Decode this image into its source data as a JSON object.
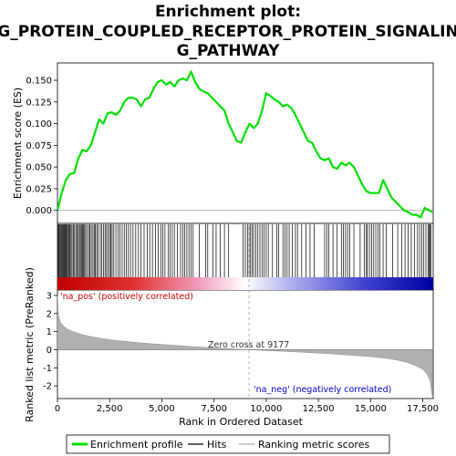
{
  "title_lines": [
    "Enrichment plot:",
    "G_PROTEIN_COUPLED_RECEPTOR_PROTEIN_SIGNALIN",
    "G_PATHWAY"
  ],
  "colors": {
    "enrichment_line": "#00e000",
    "hits": "#000000",
    "metric_fill": "#b0b0b0",
    "pos_label": "#cc0000",
    "neg_label": "#0000cc",
    "zero_cross_line": "#9999aa",
    "bar_red": "#d00000",
    "bar_white": "#ffffff",
    "bar_blue": "#0000cc"
  },
  "legend": {
    "enrichment_profile": "Enrichment profile",
    "hits": "Hits",
    "ranking_metric_scores": "Ranking metric scores"
  },
  "chart_data": [
    {
      "type": "line",
      "panel": "enrichment",
      "ylabel": "Enrichment score (ES)",
      "xlim": [
        0,
        18000
      ],
      "ylim": [
        -0.015,
        0.17
      ],
      "yticks": [
        0.0,
        0.025,
        0.05,
        0.075,
        0.1,
        0.125,
        0.15
      ],
      "ytick_labels": [
        "0.000",
        "0.025",
        "0.050",
        "0.075",
        "0.100",
        "0.125",
        "0.150"
      ],
      "series": [
        {
          "x": [
            0,
            200,
            400,
            600,
            800,
            1000,
            1200,
            1400,
            1600,
            1800,
            2000,
            2200,
            2400,
            2600,
            2800,
            3000,
            3200,
            3400,
            3600,
            3800,
            4000,
            4200,
            4400,
            4600,
            4800,
            5000,
            5200,
            5400,
            5600,
            5800,
            6000,
            6200,
            6400,
            6600,
            6800,
            7000,
            7200,
            7400,
            7600,
            7800,
            8000,
            8200,
            8400,
            8600,
            8800,
            9000,
            9200,
            9400,
            9600,
            9800,
            10000,
            10200,
            10400,
            10600,
            10800,
            11000,
            11200,
            11400,
            11600,
            11800,
            12000,
            12200,
            12400,
            12600,
            12800,
            13000,
            13200,
            13400,
            13600,
            13800,
            14000,
            14200,
            14400,
            14600,
            14800,
            15000,
            15200,
            15400,
            15600,
            15800,
            16000,
            16200,
            16400,
            16600,
            16800,
            17000,
            17200,
            17400,
            17600,
            17800,
            17950
          ],
          "y": [
            0.0,
            0.02,
            0.035,
            0.042,
            0.043,
            0.06,
            0.07,
            0.068,
            0.075,
            0.09,
            0.105,
            0.1,
            0.112,
            0.113,
            0.11,
            0.115,
            0.125,
            0.13,
            0.13,
            0.128,
            0.12,
            0.128,
            0.13,
            0.14,
            0.148,
            0.15,
            0.145,
            0.148,
            0.143,
            0.15,
            0.152,
            0.15,
            0.16,
            0.148,
            0.14,
            0.137,
            0.135,
            0.13,
            0.125,
            0.12,
            0.115,
            0.1,
            0.09,
            0.08,
            0.078,
            0.09,
            0.1,
            0.095,
            0.1,
            0.115,
            0.135,
            0.132,
            0.128,
            0.125,
            0.12,
            0.122,
            0.118,
            0.11,
            0.1,
            0.09,
            0.08,
            0.078,
            0.068,
            0.06,
            0.058,
            0.06,
            0.05,
            0.048,
            0.055,
            0.052,
            0.055,
            0.05,
            0.04,
            0.03,
            0.022,
            0.02,
            0.02,
            0.02,
            0.035,
            0.025,
            0.015,
            0.01,
            0.005,
            0.0,
            -0.002,
            -0.005,
            -0.005,
            -0.008,
            0.003,
            0.0,
            -0.002
          ]
        }
      ]
    },
    {
      "type": "area",
      "panel": "ranked_list_metric",
      "xlabel": "Rank in Ordered Dataset",
      "ylabel": "Ranked list metric (PreRanked)",
      "xlim": [
        0,
        18000
      ],
      "ylim": [
        -2.7,
        3.3
      ],
      "xticks": [
        0,
        2500,
        5000,
        7500,
        10000,
        12500,
        15000,
        17500
      ],
      "xtick_labels": [
        "0",
        "2,500",
        "5,000",
        "7,500",
        "10,000",
        "12,500",
        "15,000",
        "17,500"
      ],
      "yticks": [
        -2,
        -1,
        0,
        1,
        2,
        3
      ],
      "ytick_labels": [
        "-2",
        "-1",
        "0",
        "1",
        "2",
        "3"
      ],
      "x": [
        0,
        50,
        150,
        300,
        500,
        800,
        1200,
        1700,
        2500,
        3500,
        4500,
        5500,
        6500,
        7500,
        8500,
        9177,
        10000,
        11000,
        12000,
        13000,
        14000,
        15000,
        15800,
        16300,
        16800,
        17200,
        17500,
        17700,
        17850,
        17950
      ],
      "values": [
        3.0,
        1.9,
        1.5,
        1.3,
        1.12,
        0.98,
        0.83,
        0.7,
        0.55,
        0.43,
        0.33,
        0.25,
        0.17,
        0.1,
        0.04,
        0.0,
        -0.05,
        -0.1,
        -0.16,
        -0.22,
        -0.3,
        -0.38,
        -0.48,
        -0.58,
        -0.72,
        -0.9,
        -1.08,
        -1.35,
        -1.7,
        -2.55
      ],
      "zero_cross_label": "Zero cross at 9177",
      "zero_cross_rank": 9177,
      "pos_label": "'na_pos' (positively correlated)",
      "neg_label": "'na_neg' (negatively correlated)"
    }
  ],
  "hits": [
    40,
    70,
    110,
    150,
    190,
    230,
    270,
    310,
    350,
    390,
    430,
    470,
    520,
    560,
    600,
    650,
    700,
    760,
    820,
    880,
    940,
    1000,
    1050,
    1100,
    1150,
    1200,
    1250,
    1300,
    1350,
    1420,
    1500,
    1560,
    1620,
    1700,
    1760,
    1820,
    1880,
    1950,
    2050,
    2120,
    2200,
    2280,
    2350,
    2420,
    2500,
    2560,
    2620,
    2700,
    2800,
    2900,
    3000,
    3100,
    3200,
    3300,
    3400,
    3500,
    3620,
    3750,
    3880,
    4000,
    4150,
    4300,
    4420,
    4550,
    4700,
    4820,
    4950,
    5050,
    5150,
    5300,
    5400,
    5500,
    5600,
    5750,
    5900,
    6000,
    6100,
    6200,
    6300,
    6400,
    6500,
    6800,
    7100,
    7200,
    7450,
    7600,
    7800,
    8000,
    8200,
    8900,
    9000,
    9100,
    9180,
    9250,
    9320,
    9400,
    9500,
    9600,
    9700,
    9800,
    9900,
    10000,
    10100,
    10300,
    10500,
    10600,
    10800,
    10900,
    11000,
    11100,
    11250,
    11400,
    11500,
    11700,
    11900,
    12100,
    12300,
    12800,
    12900,
    13000,
    13200,
    13400,
    13600,
    13700,
    13800,
    13900,
    14000,
    14200,
    14500,
    14700,
    14800,
    14850,
    14950,
    15050,
    15150,
    15250,
    15350,
    15450,
    15600,
    15750,
    16050,
    16300,
    16500,
    16650,
    16800,
    16950,
    17100,
    17250,
    17350,
    17450,
    17550,
    17650,
    17750,
    17800,
    17850,
    17900
  ]
}
